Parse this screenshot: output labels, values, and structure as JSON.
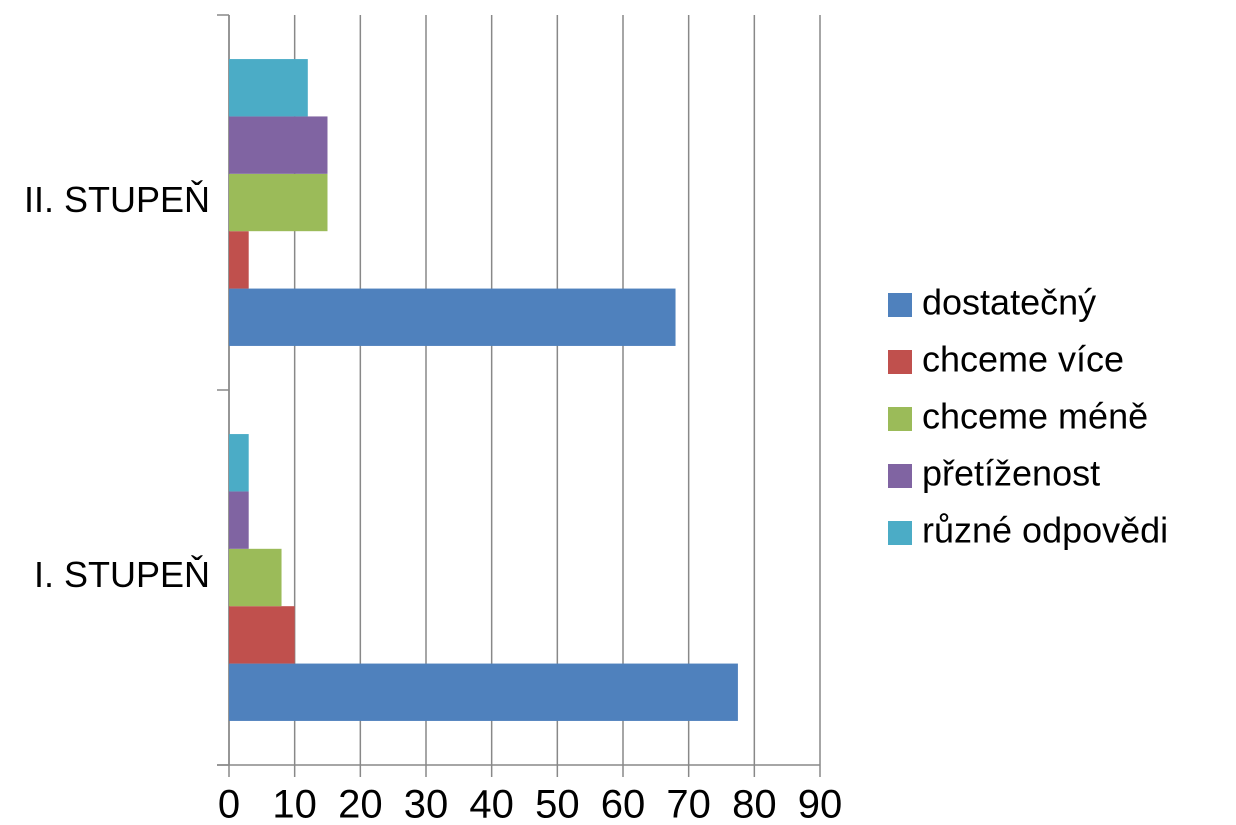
{
  "chart_data": {
    "type": "bar",
    "orientation": "horizontal",
    "categories": [
      "I. STUPEŇ",
      "II. STUPEŇ"
    ],
    "series": [
      {
        "name": "dostatečný",
        "color": "#4f81bd",
        "values": [
          77.5,
          68
        ]
      },
      {
        "name": "chceme více",
        "color": "#c0504d",
        "values": [
          10,
          3
        ]
      },
      {
        "name": "chceme méně",
        "color": "#9bbb59",
        "values": [
          8,
          15
        ]
      },
      {
        "name": "přetíženost",
        "color": "#8064a2",
        "values": [
          3,
          15
        ]
      },
      {
        "name": "různé odpovědi",
        "color": "#4bacc6",
        "values": [
          3,
          12
        ]
      }
    ],
    "xlim": [
      0,
      90
    ],
    "xticks": [
      0,
      10,
      20,
      30,
      40,
      50,
      60,
      70,
      80,
      90
    ],
    "grid": true,
    "legend": "right"
  }
}
